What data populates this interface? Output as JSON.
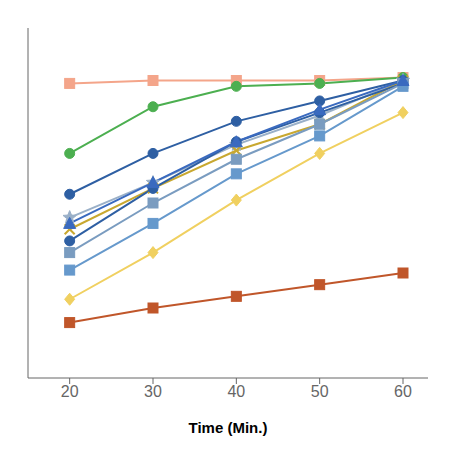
{
  "chart_data": {
    "type": "line",
    "xlabel": "Time (Min.)",
    "x": [
      20,
      30,
      40,
      50,
      60
    ],
    "series": [
      {
        "color": "#f4a58a",
        "marker": "square",
        "values": [
          96,
          97,
          97,
          97,
          98
        ]
      },
      {
        "color": "#4caf50",
        "marker": "circle",
        "values": [
          72,
          88,
          95,
          96,
          98
        ]
      },
      {
        "color": "#9ab0c8",
        "marker": "star",
        "values": [
          50,
          62,
          75,
          85,
          97
        ]
      },
      {
        "color": "#c8a830",
        "marker": "x",
        "values": [
          46,
          60,
          73,
          82,
          97
        ]
      },
      {
        "color": "#2e5fa3",
        "marker": "circle",
        "values": [
          58,
          72,
          83,
          90,
          97
        ]
      },
      {
        "color": "#2e5fa3",
        "marker": "circle",
        "values": [
          42,
          60,
          76,
          86,
          96
        ]
      },
      {
        "color": "#7a9cc0",
        "marker": "square",
        "values": [
          38,
          55,
          70,
          82,
          96
        ]
      },
      {
        "color": "#6699cc",
        "marker": "square",
        "values": [
          32,
          48,
          65,
          78,
          95
        ]
      },
      {
        "color": "#3a6abf",
        "marker": "triangle",
        "values": [
          48,
          62,
          76,
          87,
          97
        ]
      },
      {
        "color": "#f0d060",
        "marker": "diamond",
        "values": [
          22,
          38,
          56,
          72,
          86
        ]
      },
      {
        "color": "#c0562a",
        "marker": "square",
        "values": [
          14,
          19,
          23,
          27,
          31
        ]
      }
    ],
    "xlim": [
      15,
      63
    ],
    "xticks": [
      20,
      30,
      40,
      50,
      60
    ],
    "ylim": [
      -5,
      115
    ],
    "grid": false,
    "tick_labels": "x"
  }
}
